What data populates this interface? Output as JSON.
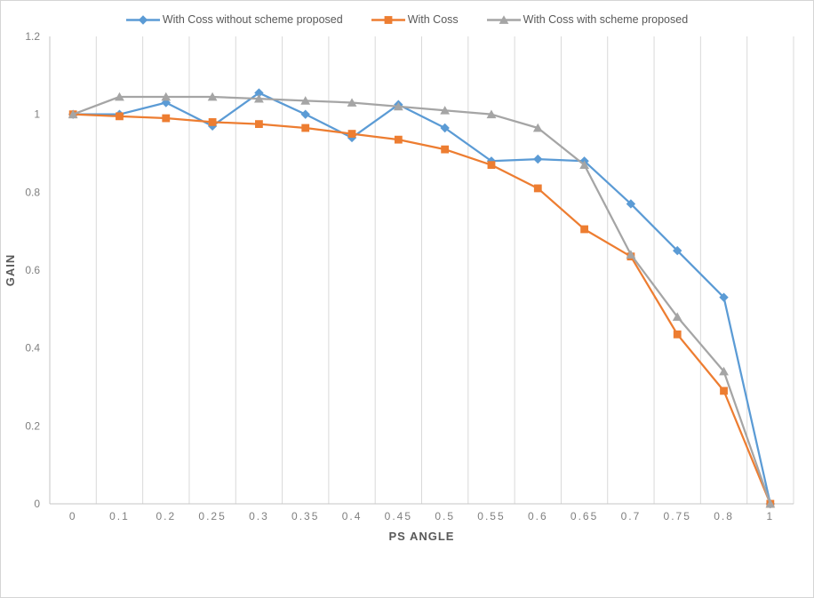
{
  "chart_data": {
    "type": "line",
    "title": "",
    "xlabel": "PS ANGLE",
    "ylabel": "GAIN",
    "categories": [
      "0",
      "0.1",
      "0.2",
      "0.25",
      "0.3",
      "0.35",
      "0.4",
      "0.45",
      "0.5",
      "0.55",
      "0.6",
      "0.65",
      "0.7",
      "0.75",
      "0.8",
      "1"
    ],
    "y_ticks": [
      "0",
      "0.2",
      "0.4",
      "0.6",
      "0.8",
      "1",
      "1.2"
    ],
    "ylim": [
      0,
      1.2
    ],
    "grid": "vertical-only",
    "legend_position": "top-center",
    "series": [
      {
        "name": "With Coss without scheme proposed",
        "color": "#5B9BD5",
        "marker": "diamond",
        "values": [
          1.0,
          1.0,
          1.03,
          0.97,
          1.055,
          1.0,
          0.94,
          1.025,
          0.965,
          0.88,
          0.885,
          0.88,
          0.77,
          0.65,
          0.53,
          0
        ]
      },
      {
        "name": "With Coss",
        "color": "#ED7D31",
        "marker": "square",
        "values": [
          1.0,
          0.995,
          0.99,
          0.98,
          0.975,
          0.965,
          0.95,
          0.935,
          0.91,
          0.87,
          0.81,
          0.705,
          0.635,
          0.435,
          0.29,
          0
        ]
      },
      {
        "name": "With Coss with scheme proposed",
        "color": "#A5A5A5",
        "marker": "triangle",
        "values": [
          1.0,
          1.045,
          1.045,
          1.045,
          1.04,
          1.035,
          1.03,
          1.02,
          1.01,
          1.0,
          0.965,
          0.87,
          0.64,
          0.48,
          0.34,
          0
        ]
      }
    ],
    "colors": {
      "gridline": "#D9D9D9",
      "axis_line": "#C6C6C6",
      "tick_label": "#7F7F7F",
      "axis_title": "#595959",
      "legend_text": "#595959",
      "background": "#FFFFFF",
      "frame_border": "#D5D5D5"
    }
  }
}
